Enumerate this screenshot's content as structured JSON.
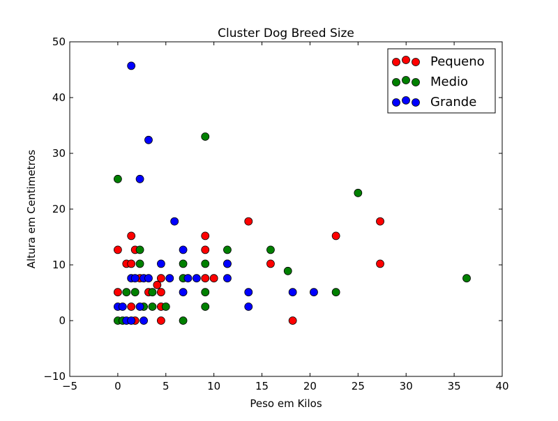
{
  "chart_data": {
    "type": "scatter",
    "title": "Cluster Dog Breed Size",
    "xlabel": "Peso em Kilos",
    "ylabel": "Altura em Centimetros",
    "xlim": [
      -5,
      40
    ],
    "ylim": [
      -10,
      50
    ],
    "xticks": [
      -5,
      0,
      5,
      10,
      15,
      20,
      25,
      30,
      35,
      40
    ],
    "yticks": [
      -10,
      0,
      10,
      20,
      30,
      40,
      50
    ],
    "grid": false,
    "legend_position": "top-right",
    "series": [
      {
        "name": "Pequeno",
        "color": "#ff0000",
        "points": [
          [
            0.0,
            12.7
          ],
          [
            0.0,
            5.1
          ],
          [
            0.9,
            10.2
          ],
          [
            1.4,
            10.2
          ],
          [
            1.4,
            15.2
          ],
          [
            1.8,
            12.7
          ],
          [
            1.4,
            2.5
          ],
          [
            1.8,
            0.0
          ],
          [
            3.2,
            5.1
          ],
          [
            4.1,
            6.4
          ],
          [
            4.5,
            7.6
          ],
          [
            4.5,
            5.1
          ],
          [
            4.5,
            2.5
          ],
          [
            4.5,
            0.0
          ],
          [
            2.3,
            7.6
          ],
          [
            9.1,
            15.2
          ],
          [
            9.1,
            12.7
          ],
          [
            9.1,
            7.6
          ],
          [
            10.0,
            7.6
          ],
          [
            13.6,
            17.8
          ],
          [
            15.9,
            10.2
          ],
          [
            18.2,
            0.0
          ],
          [
            22.7,
            15.2
          ],
          [
            27.3,
            17.8
          ],
          [
            27.3,
            10.2
          ]
        ]
      },
      {
        "name": "Medio",
        "color": "#008000",
        "points": [
          [
            0.0,
            25.4
          ],
          [
            0.0,
            0.0
          ],
          [
            0.5,
            0.0
          ],
          [
            0.9,
            5.1
          ],
          [
            1.8,
            5.1
          ],
          [
            2.3,
            12.7
          ],
          [
            2.3,
            10.2
          ],
          [
            2.7,
            2.5
          ],
          [
            3.6,
            2.5
          ],
          [
            3.6,
            5.1
          ],
          [
            5.0,
            2.5
          ],
          [
            6.8,
            10.2
          ],
          [
            6.8,
            7.6
          ],
          [
            6.8,
            0.0
          ],
          [
            9.1,
            33.0
          ],
          [
            9.1,
            10.2
          ],
          [
            9.1,
            5.1
          ],
          [
            9.1,
            2.5
          ],
          [
            11.4,
            12.7
          ],
          [
            11.4,
            10.2
          ],
          [
            15.9,
            12.7
          ],
          [
            17.7,
            8.9
          ],
          [
            22.7,
            5.1
          ],
          [
            25.0,
            22.9
          ],
          [
            36.3,
            7.6
          ]
        ]
      },
      {
        "name": "Grande",
        "color": "#0000ff",
        "points": [
          [
            1.4,
            45.7
          ],
          [
            3.2,
            32.4
          ],
          [
            2.3,
            25.4
          ],
          [
            5.9,
            17.8
          ],
          [
            0.0,
            2.5
          ],
          [
            0.5,
            2.5
          ],
          [
            0.9,
            0.0
          ],
          [
            1.4,
            0.0
          ],
          [
            1.4,
            7.6
          ],
          [
            1.8,
            7.6
          ],
          [
            2.3,
            2.5
          ],
          [
            2.7,
            0.0
          ],
          [
            2.7,
            7.6
          ],
          [
            3.2,
            7.6
          ],
          [
            4.5,
            10.2
          ],
          [
            5.4,
            7.6
          ],
          [
            6.8,
            12.7
          ],
          [
            6.8,
            5.1
          ],
          [
            7.3,
            7.6
          ],
          [
            8.2,
            7.6
          ],
          [
            11.4,
            10.2
          ],
          [
            11.4,
            7.6
          ],
          [
            13.6,
            5.1
          ],
          [
            13.6,
            2.5
          ],
          [
            18.2,
            5.1
          ],
          [
            20.4,
            5.1
          ]
        ]
      }
    ]
  }
}
